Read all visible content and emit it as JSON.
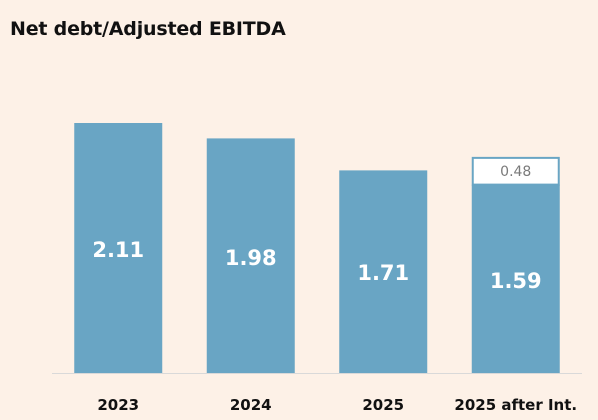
{
  "chart_data": {
    "type": "bar",
    "title": "Net debt/Adjusted EBITDA",
    "categories": [
      "2023",
      "2024",
      "2025",
      "2025 after Int."
    ],
    "values": [
      2.11,
      1.98,
      1.71,
      1.59
    ],
    "extra_segment": {
      "category": "2025 after Int.",
      "value": 0.48,
      "style": "outline"
    },
    "ylim": [
      0,
      2.11
    ],
    "grid": false,
    "legend": "none",
    "colors": {
      "bar": "#69a5c4",
      "outline": "#69a5c4",
      "outline_fill": "#ffffff",
      "background": "#fdf1e7",
      "baseline": "#d9d9d9"
    }
  }
}
